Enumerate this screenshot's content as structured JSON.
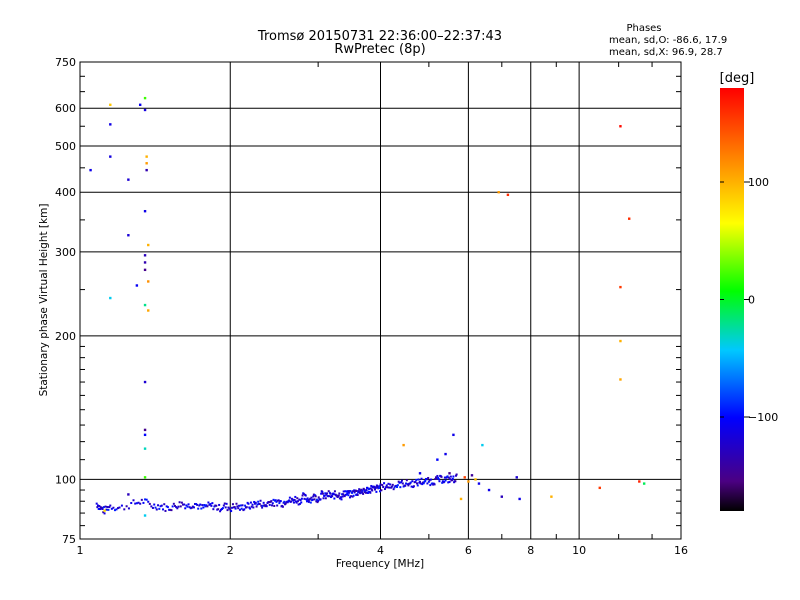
{
  "chart_data": {
    "type": "scatter",
    "title": "Tromsø 20150731 22:36:00–22:37:43",
    "subtitle": "RwPretec (8p)",
    "xlabel": "Frequency [MHz]",
    "ylabel": "Stationary phase Virtual Height [km]",
    "x_scale": "log",
    "y_scale": "log",
    "xlim": [
      1,
      16
    ],
    "ylim": [
      75,
      750
    ],
    "x_ticks": [
      1,
      2,
      4,
      6,
      8,
      10,
      16
    ],
    "x_tick_labels": [
      "1",
      "2",
      "4",
      "6",
      "8",
      "10",
      "16"
    ],
    "y_ticks": [
      75,
      100,
      200,
      300,
      400,
      500,
      600,
      750
    ],
    "y_tick_labels": [
      "75",
      "100",
      "200",
      "300",
      "400",
      "500",
      "600",
      "750"
    ],
    "grid": true,
    "phases_box": {
      "title": "Phases",
      "line_o": "mean, sd,O: -86.6, 17.9",
      "line_x": "mean, sd,X:  96.9, 28.7"
    },
    "colorbar": {
      "label": "[deg]",
      "range": [
        -180,
        180
      ],
      "tick_values": [
        100,
        0,
        -100
      ],
      "tick_labels": [
        "100",
        "0",
        "−100"
      ]
    },
    "trace": [
      [
        1.08,
        89
      ],
      [
        1.1,
        87
      ],
      [
        1.12,
        86
      ],
      [
        1.15,
        88
      ],
      [
        1.2,
        87
      ],
      [
        1.28,
        89
      ],
      [
        1.34,
        90
      ],
      [
        1.4,
        88
      ],
      [
        1.45,
        88
      ],
      [
        1.5,
        87
      ],
      [
        1.55,
        88
      ],
      [
        1.6,
        89
      ],
      [
        1.65,
        88
      ],
      [
        1.7,
        89
      ],
      [
        1.75,
        87
      ],
      [
        1.8,
        88
      ],
      [
        1.85,
        88
      ],
      [
        1.9,
        87
      ],
      [
        1.95,
        88
      ],
      [
        2.0,
        87
      ],
      [
        2.05,
        88
      ],
      [
        2.1,
        87
      ],
      [
        2.15,
        88
      ],
      [
        2.2,
        88
      ],
      [
        2.25,
        89
      ],
      [
        2.3,
        89
      ],
      [
        2.35,
        88
      ],
      [
        2.4,
        90
      ],
      [
        2.45,
        89
      ],
      [
        2.5,
        90
      ],
      [
        2.55,
        89
      ],
      [
        2.6,
        91
      ],
      [
        2.65,
        90
      ],
      [
        2.7,
        91
      ],
      [
        2.75,
        90
      ],
      [
        2.8,
        92
      ],
      [
        2.85,
        91
      ],
      [
        2.9,
        91
      ],
      [
        2.95,
        92
      ],
      [
        3.0,
        91
      ],
      [
        3.05,
        93
      ],
      [
        3.1,
        92
      ],
      [
        3.15,
        93
      ],
      [
        3.2,
        92
      ],
      [
        3.25,
        93
      ],
      [
        3.3,
        93
      ],
      [
        3.35,
        92
      ],
      [
        3.4,
        94
      ],
      [
        3.45,
        93
      ],
      [
        3.5,
        93
      ],
      [
        3.55,
        94
      ],
      [
        3.6,
        94
      ],
      [
        3.65,
        95
      ],
      [
        3.7,
        94
      ],
      [
        3.75,
        95
      ],
      [
        3.8,
        95
      ],
      [
        3.85,
        96
      ],
      [
        3.9,
        95
      ],
      [
        3.95,
        96
      ],
      [
        4.0,
        96
      ],
      [
        4.1,
        97
      ],
      [
        4.2,
        97
      ],
      [
        4.3,
        97
      ],
      [
        4.4,
        98
      ],
      [
        4.5,
        98
      ],
      [
        4.6,
        98
      ],
      [
        4.7,
        98
      ],
      [
        4.8,
        99
      ],
      [
        4.9,
        99
      ],
      [
        5.0,
        99
      ],
      [
        5.1,
        99
      ],
      [
        5.2,
        100
      ],
      [
        5.3,
        100
      ],
      [
        5.4,
        100
      ],
      [
        5.5,
        100
      ],
      [
        5.6,
        100
      ],
      [
        5.7,
        101
      ]
    ],
    "points": [
      {
        "x": 1.05,
        "y": 445,
        "phase": -110
      },
      {
        "x": 1.15,
        "y": 475,
        "phase": -115
      },
      {
        "x": 1.15,
        "y": 555,
        "phase": -112
      },
      {
        "x": 1.15,
        "y": 240,
        "phase": -40
      },
      {
        "x": 1.15,
        "y": 610,
        "phase": 90
      },
      {
        "x": 1.25,
        "y": 425,
        "phase": -120
      },
      {
        "x": 1.25,
        "y": 325,
        "phase": -118
      },
      {
        "x": 1.3,
        "y": 255,
        "phase": -105
      },
      {
        "x": 1.32,
        "y": 610,
        "phase": -108
      },
      {
        "x": 1.35,
        "y": 595,
        "phase": -115
      },
      {
        "x": 1.35,
        "y": 365,
        "phase": -110
      },
      {
        "x": 1.35,
        "y": 295,
        "phase": -130
      },
      {
        "x": 1.35,
        "y": 285,
        "phase": -135
      },
      {
        "x": 1.35,
        "y": 275,
        "phase": -150
      },
      {
        "x": 1.35,
        "y": 232,
        "phase": -20
      },
      {
        "x": 1.35,
        "y": 160,
        "phase": -120
      },
      {
        "x": 1.35,
        "y": 127,
        "phase": -150
      },
      {
        "x": 1.35,
        "y": 124,
        "phase": -100
      },
      {
        "x": 1.35,
        "y": 116,
        "phase": -30
      },
      {
        "x": 1.35,
        "y": 101,
        "phase": 20
      },
      {
        "x": 1.35,
        "y": 630,
        "phase": 20
      },
      {
        "x": 1.36,
        "y": 475,
        "phase": 100
      },
      {
        "x": 1.36,
        "y": 460,
        "phase": 110
      },
      {
        "x": 1.36,
        "y": 445,
        "phase": -135
      },
      {
        "x": 1.37,
        "y": 310,
        "phase": 100
      },
      {
        "x": 1.37,
        "y": 260,
        "phase": 115
      },
      {
        "x": 1.37,
        "y": 226,
        "phase": 105
      },
      {
        "x": 1.35,
        "y": 84,
        "phase": -40
      },
      {
        "x": 1.25,
        "y": 93,
        "phase": -130
      },
      {
        "x": 1.12,
        "y": 86,
        "phase": 80
      },
      {
        "x": 4.45,
        "y": 118,
        "phase": 110
      },
      {
        "x": 4.8,
        "y": 103,
        "phase": -110
      },
      {
        "x": 5.2,
        "y": 110,
        "phase": -100
      },
      {
        "x": 5.4,
        "y": 113,
        "phase": -110
      },
      {
        "x": 5.6,
        "y": 124,
        "phase": -110
      },
      {
        "x": 5.5,
        "y": 103,
        "phase": -150
      },
      {
        "x": 5.9,
        "y": 101,
        "phase": 150
      },
      {
        "x": 6.0,
        "y": 99,
        "phase": 110
      },
      {
        "x": 6.1,
        "y": 102,
        "phase": -145
      },
      {
        "x": 6.2,
        "y": 100,
        "phase": 95
      },
      {
        "x": 6.3,
        "y": 98,
        "phase": -110
      },
      {
        "x": 6.4,
        "y": 118,
        "phase": -40
      },
      {
        "x": 5.8,
        "y": 91,
        "phase": 100
      },
      {
        "x": 6.6,
        "y": 95,
        "phase": -110
      },
      {
        "x": 6.9,
        "y": 400,
        "phase": 110
      },
      {
        "x": 7.2,
        "y": 395,
        "phase": 160
      },
      {
        "x": 7.0,
        "y": 92,
        "phase": -130
      },
      {
        "x": 7.5,
        "y": 101,
        "phase": -120
      },
      {
        "x": 7.6,
        "y": 91,
        "phase": -110
      },
      {
        "x": 8.8,
        "y": 92,
        "phase": 100
      },
      {
        "x": 11.0,
        "y": 96,
        "phase": 155
      },
      {
        "x": 12.1,
        "y": 550,
        "phase": 175
      },
      {
        "x": 12.6,
        "y": 352,
        "phase": 160
      },
      {
        "x": 12.1,
        "y": 253,
        "phase": 155
      },
      {
        "x": 12.1,
        "y": 195,
        "phase": 100
      },
      {
        "x": 12.1,
        "y": 162,
        "phase": 105
      },
      {
        "x": 13.2,
        "y": 99,
        "phase": 165
      },
      {
        "x": 13.5,
        "y": 98,
        "phase": -10
      }
    ]
  }
}
